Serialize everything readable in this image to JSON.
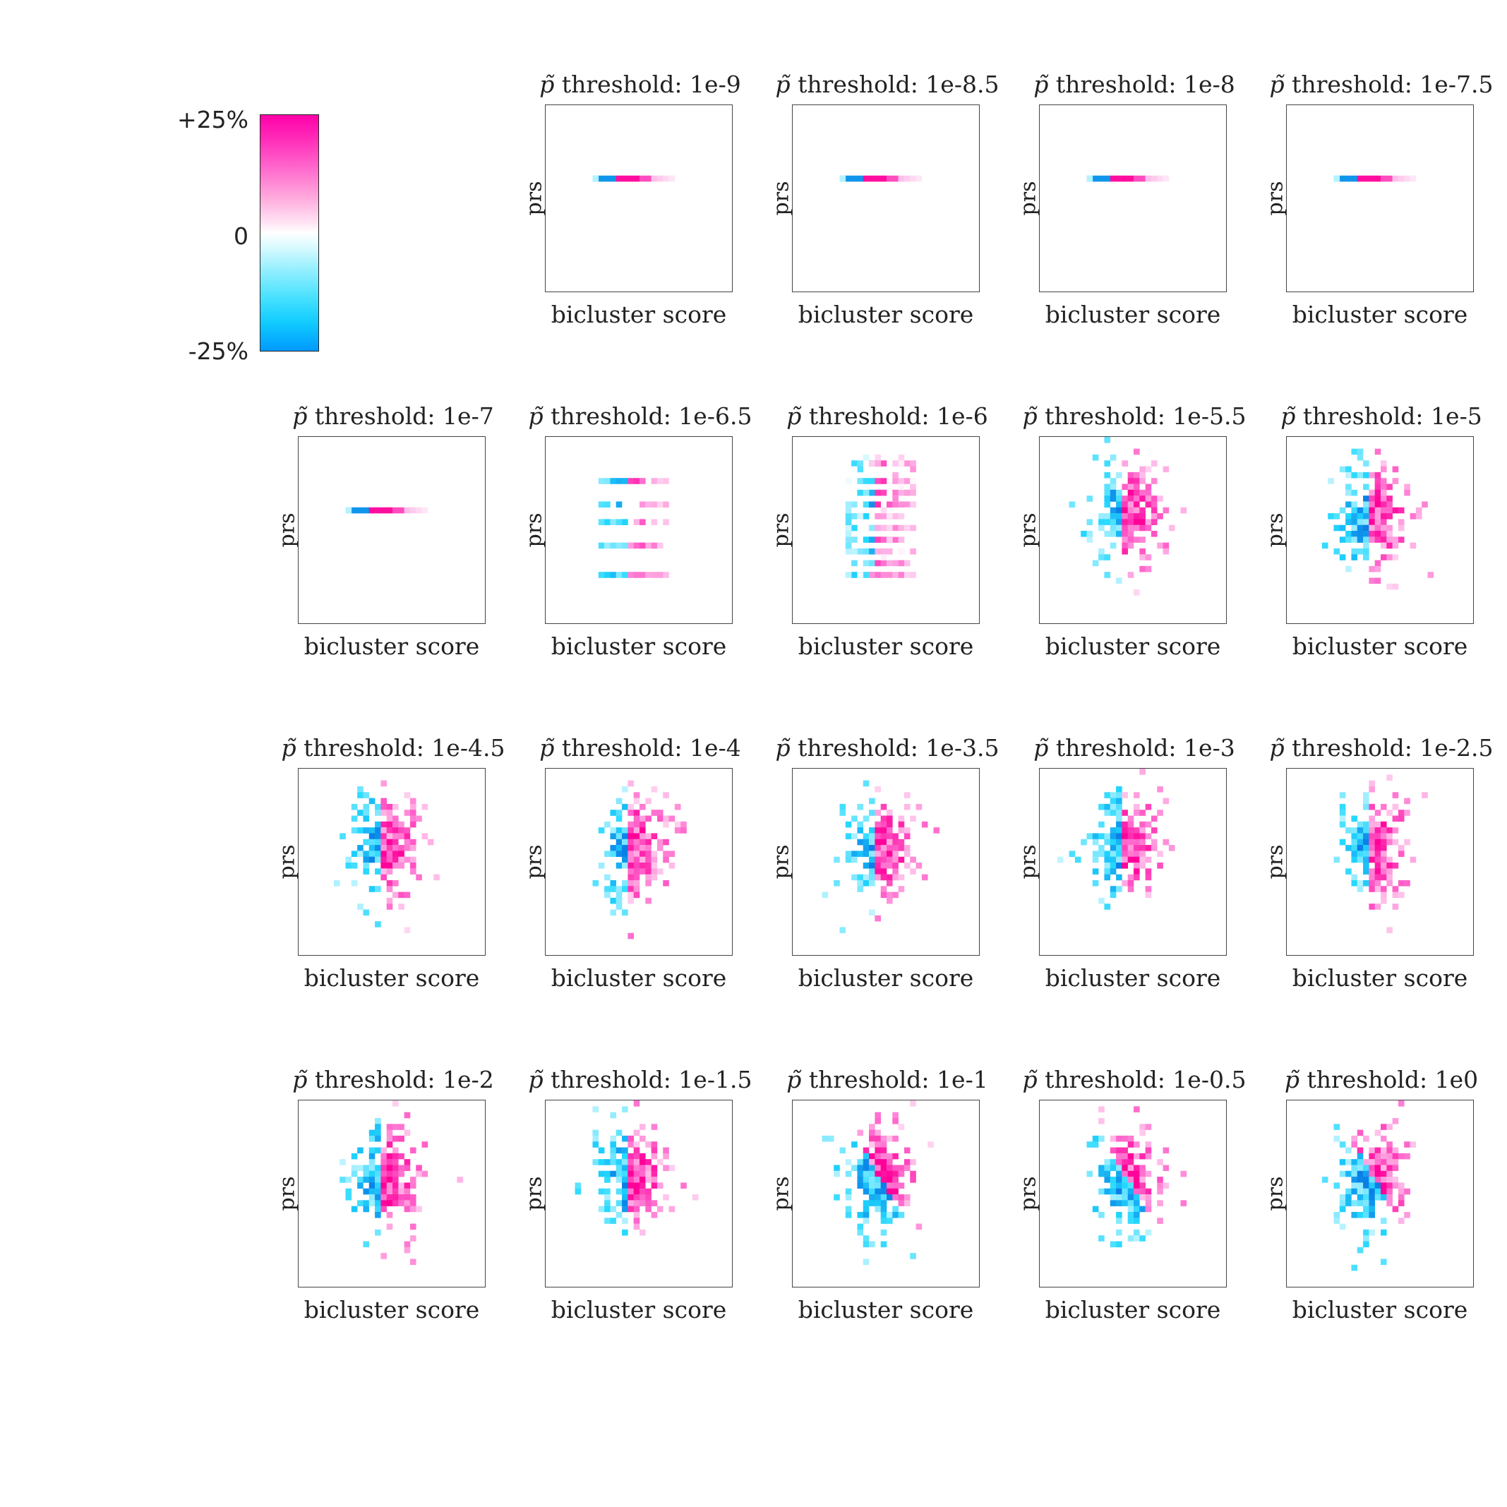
{
  "colorbar": {
    "max_label": "+25%",
    "mid_label": "0",
    "min_label": "-25%",
    "colors": {
      "negative": "#0099ff",
      "neutral": "#ffffff",
      "positive": "#ff00aa"
    }
  },
  "axis_labels": {
    "xlabel": "bicluster score",
    "ylabel": "prs"
  },
  "title_prefix_symbol": "p̃",
  "title_prefix_text": " threshold: ",
  "chart_data": {
    "type": "heatmap",
    "value_range": [
      -25,
      25
    ],
    "value_unit": "%",
    "panels": [
      {
        "threshold": "1e-9",
        "pattern": "line"
      },
      {
        "threshold": "1e-8.5",
        "pattern": "line"
      },
      {
        "threshold": "1e-8",
        "pattern": "line"
      },
      {
        "threshold": "1e-7.5",
        "pattern": "line"
      },
      {
        "threshold": "1e-7",
        "pattern": "line"
      },
      {
        "threshold": "1e-6.5",
        "pattern": "bands"
      },
      {
        "threshold": "1e-6",
        "pattern": "bands-dense"
      },
      {
        "threshold": "1e-5.5",
        "pattern": "blob"
      },
      {
        "threshold": "1e-5",
        "pattern": "blob"
      },
      {
        "threshold": "1e-4.5",
        "pattern": "blob"
      },
      {
        "threshold": "1e-4",
        "pattern": "blob"
      },
      {
        "threshold": "1e-3.5",
        "pattern": "blob"
      },
      {
        "threshold": "1e-3",
        "pattern": "blob"
      },
      {
        "threshold": "1e-2.5",
        "pattern": "blob"
      },
      {
        "threshold": "1e-2",
        "pattern": "blob"
      },
      {
        "threshold": "1e-1.5",
        "pattern": "blob"
      },
      {
        "threshold": "1e-1",
        "pattern": "blob-diagonal"
      },
      {
        "threshold": "1e-0.5",
        "pattern": "blob-diagonal"
      },
      {
        "threshold": "1e0",
        "pattern": "blob-diagonal"
      }
    ]
  }
}
